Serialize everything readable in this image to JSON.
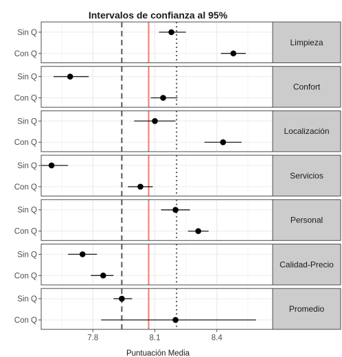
{
  "chart_data": {
    "type": "scatter",
    "title": "Intervalos de confianza al 95%",
    "xlabel": "Puntuación Media",
    "ylabel": "",
    "xlim": [
      7.55,
      8.67
    ],
    "x_ticks": [
      "7.8",
      "8.1",
      "8.4"
    ],
    "x_tick_values": [
      7.8,
      8.1,
      8.4
    ],
    "row_labels": [
      "Sin Q",
      "Con Q"
    ],
    "reference_lines": [
      {
        "style": "dashed",
        "color": "#555555",
        "x": 7.94
      },
      {
        "style": "solid",
        "color": "#f8766d",
        "x": 8.07
      },
      {
        "style": "dotted",
        "color": "#555555",
        "x": 8.205
      }
    ],
    "grid": true,
    "panels": [
      {
        "label": "Limpieza",
        "points": [
          {
            "row": "Sin Q",
            "estimate": 8.18,
            "lower": 8.12,
            "upper": 8.25
          },
          {
            "row": "Con Q",
            "estimate": 8.48,
            "lower": 8.42,
            "upper": 8.54
          }
        ]
      },
      {
        "label": "Confort",
        "points": [
          {
            "row": "Sin Q",
            "estimate": 7.69,
            "lower": 7.61,
            "upper": 7.78
          },
          {
            "row": "Con Q",
            "estimate": 8.14,
            "lower": 8.08,
            "upper": 8.21
          }
        ]
      },
      {
        "label": "Localización",
        "points": [
          {
            "row": "Sin Q",
            "estimate": 8.1,
            "lower": 8.0,
            "upper": 8.2
          },
          {
            "row": "Con Q",
            "estimate": 8.43,
            "lower": 8.34,
            "upper": 8.52
          }
        ]
      },
      {
        "label": "Servicios",
        "points": [
          {
            "row": "Sin Q",
            "estimate": 7.6,
            "lower": 7.55,
            "upper": 7.68
          },
          {
            "row": "Con Q",
            "estimate": 8.03,
            "lower": 7.97,
            "upper": 8.09
          }
        ]
      },
      {
        "label": "Personal",
        "points": [
          {
            "row": "Sin Q",
            "estimate": 8.2,
            "lower": 8.13,
            "upper": 8.27
          },
          {
            "row": "Con Q",
            "estimate": 8.31,
            "lower": 8.26,
            "upper": 8.36
          }
        ]
      },
      {
        "label": "Calidad-Precio",
        "points": [
          {
            "row": "Sin Q",
            "estimate": 7.75,
            "lower": 7.68,
            "upper": 7.82
          },
          {
            "row": "Con Q",
            "estimate": 7.85,
            "lower": 7.79,
            "upper": 7.9
          }
        ]
      },
      {
        "label": "Promedio",
        "points": [
          {
            "row": "Sin Q",
            "estimate": 7.94,
            "lower": 7.9,
            "upper": 7.99
          },
          {
            "row": "Con Q",
            "estimate": 8.2,
            "lower": 7.84,
            "upper": 8.59
          }
        ]
      }
    ]
  }
}
